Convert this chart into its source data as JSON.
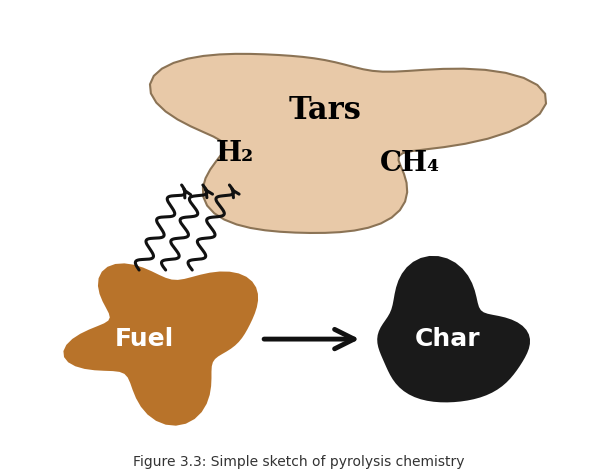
{
  "title": "Figure 3.3: Simple sketch of pyrolysis chemistry",
  "background_color": "#ffffff",
  "fuel_color": "#b8732a",
  "fuel_label": "Fuel",
  "fuel_label_color": "#ffffff",
  "char_color": "#1a1a1a",
  "char_label": "Char",
  "char_label_color": "#ffffff",
  "gas_cloud_color": "#e8c9a8",
  "gas_cloud_edge_color": "#8b7355",
  "tars_label": "Tars",
  "h2_label": "H₂",
  "ch4_label": "CH₄",
  "label_color": "#000000",
  "arrow_color": "#111111",
  "wavy_color": "#111111",
  "figsize": [
    5.97,
    4.74
  ],
  "dpi": 100
}
